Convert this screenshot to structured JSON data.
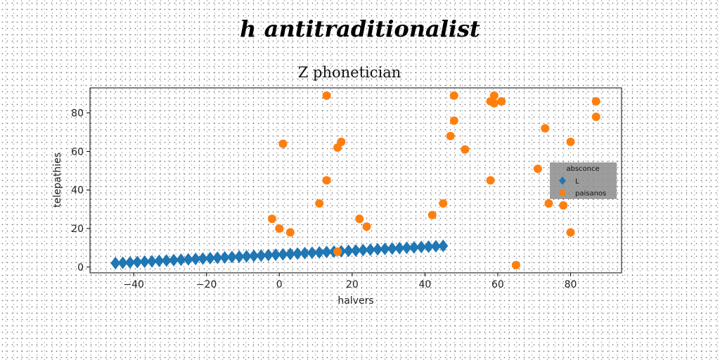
{
  "figure_title": "h antitraditionalist",
  "chart_data": {
    "type": "scatter",
    "title": "Z phonetician",
    "xlabel": "halvers",
    "ylabel": "telepathies",
    "xlim": [
      -52,
      94
    ],
    "ylim": [
      -3,
      93
    ],
    "xticks": [
      -40,
      -20,
      0,
      20,
      40,
      60,
      80
    ],
    "xtick_labels": [
      "−40",
      "−20",
      "0",
      "20",
      "40",
      "60",
      "80"
    ],
    "yticks": [
      0,
      20,
      40,
      60,
      80
    ],
    "ytick_labels": [
      "0",
      "20",
      "40",
      "60",
      "80"
    ],
    "grid": false,
    "legend": {
      "title": "absconce",
      "placement": "center-right",
      "entries": [
        "L",
        "paisanos"
      ]
    },
    "series": [
      {
        "name": "L",
        "marker": "diamond",
        "color": "#1f77b4",
        "x": [
          -45,
          -43,
          -41,
          -39,
          -37,
          -35,
          -33,
          -31,
          -29,
          -27,
          -25,
          -23,
          -21,
          -19,
          -17,
          -15,
          -13,
          -11,
          -9,
          -7,
          -5,
          -3,
          -1,
          1,
          3,
          5,
          7,
          9,
          11,
          13,
          15,
          17,
          19,
          21,
          23,
          25,
          27,
          29,
          31,
          33,
          35,
          37,
          39,
          41,
          43,
          45
        ],
        "y": [
          2.0,
          2.2,
          2.4,
          2.6,
          2.8,
          3.0,
          3.2,
          3.4,
          3.6,
          3.8,
          4.0,
          4.2,
          4.4,
          4.6,
          4.8,
          5.0,
          5.2,
          5.4,
          5.6,
          5.8,
          6.0,
          6.2,
          6.4,
          6.6,
          6.8,
          7.0,
          7.2,
          7.4,
          7.6,
          7.8,
          8.0,
          8.2,
          8.4,
          8.6,
          8.8,
          9.0,
          9.2,
          9.4,
          9.6,
          9.8,
          10.0,
          10.2,
          10.4,
          10.6,
          10.8,
          11.0
        ]
      },
      {
        "name": "paisanos",
        "marker": "circle",
        "color": "#ff7f0e",
        "x": [
          -2,
          0,
          1,
          3,
          11,
          13,
          13,
          16,
          16,
          17,
          22,
          24,
          42,
          45,
          47,
          48,
          48,
          51,
          58,
          58,
          59,
          59,
          61,
          65,
          71,
          73,
          74,
          78,
          80,
          80,
          87,
          87
        ],
        "y": [
          25,
          20,
          64,
          18,
          33,
          89,
          45,
          8,
          62,
          65,
          25,
          21,
          27,
          33,
          68,
          76,
          89,
          61,
          86,
          45,
          89,
          85,
          86,
          1,
          51,
          72,
          33,
          32,
          65,
          18,
          86,
          78
        ]
      }
    ]
  }
}
